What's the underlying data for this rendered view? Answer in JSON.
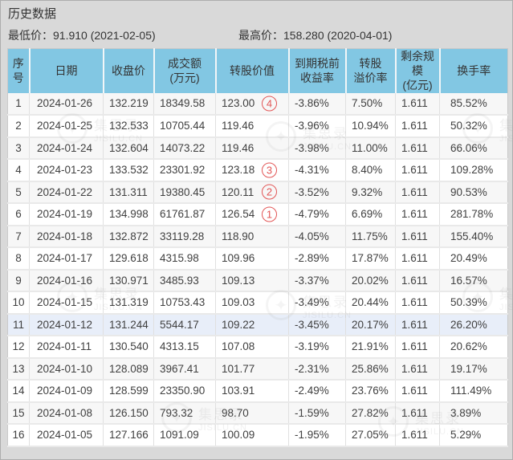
{
  "page": {
    "title": "历史数据",
    "min_label": "最低价：91.910 (2021-02-05)",
    "max_label": "最高价：158.280 (2020-04-01)"
  },
  "watermark": {
    "brand": "集思录",
    "domain": "JISILU.CN",
    "logo_glyph": "✦"
  },
  "colors": {
    "header_bg": "#82c7e3",
    "highlight_row_bg": "#e8eef9",
    "badge_red": "#e25555",
    "page_bg": "#d9d9d9"
  },
  "table": {
    "columns": [
      {
        "key": "no",
        "lines": [
          "序",
          "号"
        ]
      },
      {
        "key": "date",
        "lines": [
          "日期"
        ]
      },
      {
        "key": "close",
        "lines": [
          "收盘价"
        ]
      },
      {
        "key": "turnover",
        "lines": [
          "成交额",
          "(万元)"
        ]
      },
      {
        "key": "conv_value",
        "lines": [
          "转股价值"
        ]
      },
      {
        "key": "ytm",
        "lines": [
          "到期税前",
          "收益率"
        ]
      },
      {
        "key": "premium",
        "lines": [
          "转股",
          "溢价率"
        ]
      },
      {
        "key": "size",
        "lines": [
          "剩余规模",
          "(亿元)"
        ]
      },
      {
        "key": "rate",
        "lines": [
          "换手率"
        ]
      }
    ],
    "rows": [
      {
        "no": "1",
        "date": "2024-01-26",
        "close": "132.219",
        "turnover": "18349.58",
        "conv_value": "123.00",
        "badge": "4",
        "ytm": "-3.86%",
        "premium": "7.50%",
        "size": "1.611",
        "rate": "85.52%",
        "highlighted": false
      },
      {
        "no": "2",
        "date": "2024-01-25",
        "close": "132.533",
        "turnover": "10705.44",
        "conv_value": "119.46",
        "badge": null,
        "ytm": "-3.96%",
        "premium": "10.94%",
        "size": "1.611",
        "rate": "50.32%",
        "highlighted": false
      },
      {
        "no": "3",
        "date": "2024-01-24",
        "close": "132.604",
        "turnover": "14073.22",
        "conv_value": "119.46",
        "badge": null,
        "ytm": "-3.98%",
        "premium": "11.00%",
        "size": "1.611",
        "rate": "66.06%",
        "highlighted": false
      },
      {
        "no": "4",
        "date": "2024-01-23",
        "close": "133.532",
        "turnover": "23301.92",
        "conv_value": "123.18",
        "badge": "3",
        "ytm": "-4.31%",
        "premium": "8.40%",
        "size": "1.611",
        "rate": "109.28%",
        "highlighted": false
      },
      {
        "no": "5",
        "date": "2024-01-22",
        "close": "131.311",
        "turnover": "19380.45",
        "conv_value": "120.11",
        "badge": "2",
        "ytm": "-3.52%",
        "premium": "9.32%",
        "size": "1.611",
        "rate": "90.53%",
        "highlighted": false
      },
      {
        "no": "6",
        "date": "2024-01-19",
        "close": "134.998",
        "turnover": "61761.87",
        "conv_value": "126.54",
        "badge": "1",
        "ytm": "-4.79%",
        "premium": "6.69%",
        "size": "1.611",
        "rate": "281.78%",
        "highlighted": false
      },
      {
        "no": "7",
        "date": "2024-01-18",
        "close": "132.872",
        "turnover": "33119.28",
        "conv_value": "118.90",
        "badge": null,
        "ytm": "-4.05%",
        "premium": "11.75%",
        "size": "1.611",
        "rate": "155.40%",
        "highlighted": false
      },
      {
        "no": "8",
        "date": "2024-01-17",
        "close": "129.618",
        "turnover": "4315.98",
        "conv_value": "109.96",
        "badge": null,
        "ytm": "-2.89%",
        "premium": "17.87%",
        "size": "1.611",
        "rate": "20.49%",
        "highlighted": false
      },
      {
        "no": "9",
        "date": "2024-01-16",
        "close": "130.971",
        "turnover": "3485.93",
        "conv_value": "109.13",
        "badge": null,
        "ytm": "-3.37%",
        "premium": "20.02%",
        "size": "1.611",
        "rate": "16.57%",
        "highlighted": false
      },
      {
        "no": "10",
        "date": "2024-01-15",
        "close": "131.319",
        "turnover": "10753.43",
        "conv_value": "109.03",
        "badge": null,
        "ytm": "-3.49%",
        "premium": "20.44%",
        "size": "1.611",
        "rate": "50.39%",
        "highlighted": false
      },
      {
        "no": "11",
        "date": "2024-01-12",
        "close": "131.244",
        "turnover": "5544.17",
        "conv_value": "109.22",
        "badge": null,
        "ytm": "-3.45%",
        "premium": "20.17%",
        "size": "1.611",
        "rate": "26.20%",
        "highlighted": true
      },
      {
        "no": "12",
        "date": "2024-01-11",
        "close": "130.540",
        "turnover": "4313.15",
        "conv_value": "107.08",
        "badge": null,
        "ytm": "-3.19%",
        "premium": "21.91%",
        "size": "1.611",
        "rate": "20.62%",
        "highlighted": false
      },
      {
        "no": "13",
        "date": "2024-01-10",
        "close": "128.089",
        "turnover": "3967.41",
        "conv_value": "101.77",
        "badge": null,
        "ytm": "-2.31%",
        "premium": "25.86%",
        "size": "1.611",
        "rate": "19.17%",
        "highlighted": false
      },
      {
        "no": "14",
        "date": "2024-01-09",
        "close": "128.599",
        "turnover": "23350.90",
        "conv_value": "103.91",
        "badge": null,
        "ytm": "-2.49%",
        "premium": "23.76%",
        "size": "1.611",
        "rate": "111.49%",
        "highlighted": false
      },
      {
        "no": "15",
        "date": "2024-01-08",
        "close": "126.150",
        "turnover": "793.32",
        "conv_value": "98.70",
        "badge": null,
        "ytm": "-1.59%",
        "premium": "27.82%",
        "size": "1.611",
        "rate": "3.89%",
        "highlighted": false
      },
      {
        "no": "16",
        "date": "2024-01-05",
        "close": "127.166",
        "turnover": "1091.09",
        "conv_value": "100.09",
        "badge": null,
        "ytm": "-1.95%",
        "premium": "27.05%",
        "size": "1.611",
        "rate": "5.29%",
        "highlighted": false
      }
    ]
  }
}
